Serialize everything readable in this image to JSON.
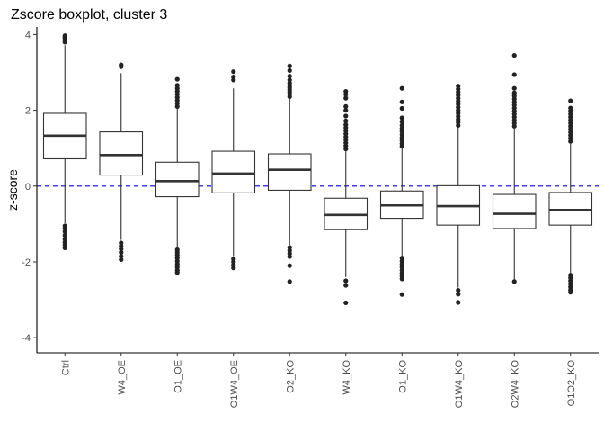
{
  "chart_data": {
    "type": "boxplot",
    "title": "Zscore boxplot, cluster 3",
    "xlabel": "",
    "ylabel": "z-score",
    "ylim": [
      -4.4,
      4.2
    ],
    "yticks": [
      4,
      2,
      0,
      -2,
      -4
    ],
    "reference_line": {
      "y": 0,
      "style": "dashed",
      "color": "#0000ff"
    },
    "grid": false,
    "colors": {
      "box": "#333333",
      "box_fill": "#ffffff",
      "outlier": "#222222",
      "axis": "#000000"
    },
    "categories": [
      "Ctrl",
      "W4_OE",
      "O1_OE",
      "O1W4_OE",
      "O2_KO",
      "W4_KO",
      "O1_KO",
      "O1W4_KO",
      "O2W4_KO",
      "O1O2_KO"
    ],
    "boxes": [
      {
        "q1": 0.72,
        "median": 1.33,
        "q3": 1.92,
        "lower": -0.98,
        "upper": 3.72,
        "outliers": [
          3.8,
          3.85,
          3.9,
          3.94,
          3.97,
          -1.05,
          -1.12,
          -1.2,
          -1.3,
          -1.4,
          -1.48,
          -1.55,
          -1.63
        ]
      },
      {
        "q1": 0.29,
        "median": 0.82,
        "q3": 1.43,
        "lower": -1.42,
        "upper": 2.98,
        "outliers": [
          3.15,
          3.2,
          -1.5,
          -1.58,
          -1.66,
          -1.75,
          -1.85,
          -1.94
        ]
      },
      {
        "q1": -0.28,
        "median": 0.13,
        "q3": 0.63,
        "lower": -1.62,
        "upper": 2.05,
        "outliers": [
          2.1,
          2.18,
          2.26,
          2.34,
          2.42,
          2.5,
          2.58,
          2.66,
          2.82,
          -1.68,
          -1.75,
          -1.82,
          -1.9,
          -1.98,
          -2.06,
          -2.14,
          -2.22,
          -2.28
        ]
      },
      {
        "q1": -0.18,
        "median": 0.33,
        "q3": 0.92,
        "lower": -1.85,
        "upper": 2.58,
        "outliers": [
          2.8,
          2.88,
          3.02,
          -1.92,
          -2.0,
          -2.08,
          -2.16
        ]
      },
      {
        "q1": -0.11,
        "median": 0.43,
        "q3": 0.85,
        "lower": -1.55,
        "upper": 2.32,
        "outliers": [
          2.36,
          2.42,
          2.48,
          2.54,
          2.6,
          2.66,
          2.72,
          2.8,
          2.9,
          3.05,
          3.17,
          -1.62,
          -1.7,
          -1.78,
          -1.86,
          -2.1,
          -2.52
        ]
      },
      {
        "q1": -1.15,
        "median": -0.76,
        "q3": -0.32,
        "lower": -2.4,
        "upper": 0.92,
        "outliers": [
          0.98,
          1.06,
          1.14,
          1.22,
          1.3,
          1.38,
          1.46,
          1.54,
          1.62,
          1.72,
          1.85,
          2.0,
          2.1,
          2.32,
          2.42,
          2.5,
          -2.5,
          -2.62,
          -3.08
        ]
      },
      {
        "q1": -0.85,
        "median": -0.51,
        "q3": -0.13,
        "lower": -1.85,
        "upper": 1.0,
        "outliers": [
          1.05,
          1.12,
          1.2,
          1.28,
          1.36,
          1.44,
          1.52,
          1.6,
          1.7,
          1.8,
          2.05,
          2.22,
          2.58,
          -1.9,
          -1.98,
          -2.06,
          -2.14,
          -2.22,
          -2.3,
          -2.38,
          -2.45,
          -2.86
        ]
      },
      {
        "q1": -1.03,
        "median": -0.53,
        "q3": 0.01,
        "lower": -2.68,
        "upper": 1.55,
        "outliers": [
          1.6,
          1.68,
          1.76,
          1.84,
          1.92,
          2.0,
          2.08,
          2.16,
          2.24,
          2.32,
          2.4,
          2.48,
          2.56,
          2.64,
          -2.75,
          -2.85,
          -3.07
        ]
      },
      {
        "q1": -1.12,
        "median": -0.73,
        "q3": -0.22,
        "lower": -2.48,
        "upper": 1.52,
        "outliers": [
          1.58,
          1.66,
          1.74,
          1.82,
          1.9,
          1.98,
          2.06,
          2.14,
          2.22,
          2.3,
          2.38,
          2.46,
          2.58,
          2.94,
          3.45,
          -2.52
        ]
      },
      {
        "q1": -1.03,
        "median": -0.63,
        "q3": -0.17,
        "lower": -2.3,
        "upper": 1.12,
        "outliers": [
          1.18,
          1.26,
          1.34,
          1.42,
          1.5,
          1.58,
          1.66,
          1.74,
          1.82,
          1.9,
          1.98,
          2.06,
          2.25,
          -2.35,
          -2.42,
          -2.5,
          -2.58,
          -2.66,
          -2.74,
          -2.8
        ]
      }
    ]
  }
}
